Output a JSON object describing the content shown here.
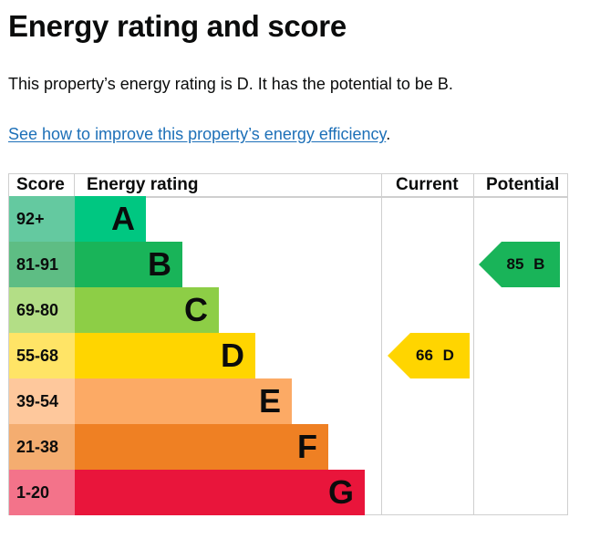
{
  "title": "Energy rating and score",
  "summary": "This property’s energy rating is D. It has the potential to be B.",
  "link": {
    "text": "See how to improve this property’s energy efficiency",
    "suffix": "."
  },
  "table": {
    "headers": {
      "score": "Score",
      "rating": "Energy rating",
      "current": "Current",
      "potential": "Potential"
    },
    "bands": [
      {
        "score": "92+",
        "letter": "A",
        "color": "#00c781",
        "light": "#64c9a0"
      },
      {
        "score": "81-91",
        "letter": "B",
        "color": "#19b459",
        "light": "#5ebd84"
      },
      {
        "score": "69-80",
        "letter": "C",
        "color": "#8dce46",
        "light": "#b3de86"
      },
      {
        "score": "55-68",
        "letter": "D",
        "color": "#ffd500",
        "light": "#ffe466"
      },
      {
        "score": "39-54",
        "letter": "E",
        "color": "#fcaa65",
        "light": "#fec89c"
      },
      {
        "score": "21-38",
        "letter": "F",
        "color": "#ef8023",
        "light": "#f4ad70"
      },
      {
        "score": "1-20",
        "letter": "G",
        "color": "#e9153b",
        "light": "#f3738a"
      }
    ],
    "current": {
      "label": "66 D",
      "score": 66,
      "band": "D",
      "color": "#ffd500"
    },
    "potential": {
      "label": "85 B",
      "score": 85,
      "band": "B",
      "color": "#19b459"
    }
  }
}
